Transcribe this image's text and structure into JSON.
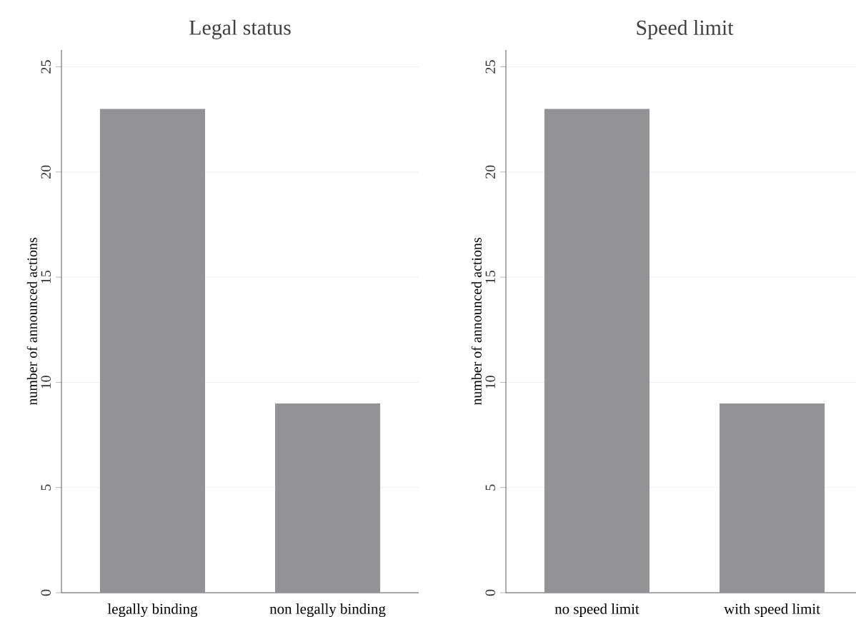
{
  "chart_data": [
    {
      "type": "bar",
      "title": "Legal status",
      "ylabel": "number of announced actions",
      "categories": [
        "legally binding",
        "non legally binding"
      ],
      "values": [
        23,
        9
      ],
      "color": "#939396",
      "ylim": [
        0,
        25.8
      ],
      "yticks": [
        0,
        5,
        10,
        15,
        20,
        25
      ],
      "grid": "y"
    },
    {
      "type": "bar",
      "title": "Speed limit",
      "ylabel": "number of announced actions",
      "categories": [
        "no speed limit",
        "with speed limit"
      ],
      "values": [
        23,
        9
      ],
      "color": "#939396",
      "ylim": [
        0,
        25.8
      ],
      "yticks": [
        0,
        5,
        10,
        15,
        20,
        25
      ],
      "grid": "y"
    }
  ]
}
